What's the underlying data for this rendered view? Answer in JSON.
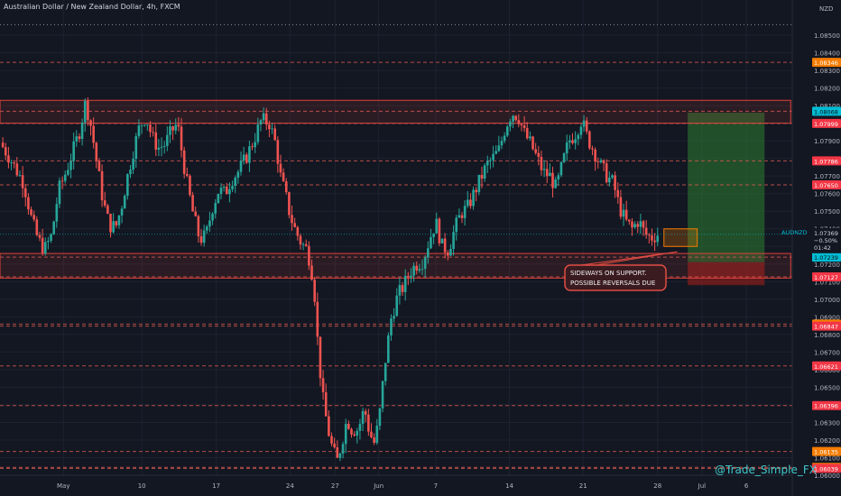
{
  "header": {
    "title": "Australian Dollar / New Zealand Dollar, 4h, FXCM"
  },
  "watermark": "@Trade_Simple_FX",
  "annotation": {
    "line1": "SIDEWAYS ON SUPPORT.",
    "line2": "POSSIBLE REVERSALS DUE"
  },
  "colors": {
    "background": "#131722",
    "up": "#26a69a",
    "down": "#ef5350",
    "level_line": "#d5564f",
    "zone_border": "#e0413a",
    "target_zone": "#2e7d32",
    "stop_zone": "#7f1d1d",
    "annotation_border": "#e04c43",
    "annotation_fill": "#3a1b20",
    "price_badge_red": "#f23645",
    "price_badge_orange": "#f57c00",
    "price_badge_cyan": "#00bcd4",
    "watermark": "#3ec8c8"
  },
  "chart_data": {
    "type": "candlestick",
    "symbol": "AUDNZD",
    "timeframe": "4h",
    "y_range": [
      1.06,
      1.087
    ],
    "y_ticks": [
      "1.08500",
      "1.08400",
      "1.08300",
      "1.08200",
      "1.08100",
      "1.08000",
      "1.07900",
      "1.07800",
      "1.07700",
      "1.07600",
      "1.07500",
      "1.07400",
      "1.07300",
      "1.07200",
      "1.07100",
      "1.07000",
      "1.06900",
      "1.06800",
      "1.06700",
      "1.06600",
      "1.06500",
      "1.06400",
      "1.06300",
      "1.06200",
      "1.06100",
      "1.06000"
    ],
    "currency_label": "NZD",
    "x_ticks": [
      {
        "label": "May",
        "x": 0.08
      },
      {
        "label": "10",
        "x": 0.179
      },
      {
        "label": "17",
        "x": 0.273
      },
      {
        "label": "24",
        "x": 0.366
      },
      {
        "label": "27",
        "x": 0.423
      },
      {
        "label": "Jun",
        "x": 0.478
      },
      {
        "label": "7",
        "x": 0.55
      },
      {
        "label": "14",
        "x": 0.643
      },
      {
        "label": "21",
        "x": 0.736
      },
      {
        "label": "28",
        "x": 0.83
      },
      {
        "label": "Jul",
        "x": 0.886
      },
      {
        "label": "6",
        "x": 0.942
      }
    ],
    "price_levels": [
      {
        "value": 1.08346,
        "label": "1.08346",
        "badge": "orange"
      },
      {
        "value": 1.08068,
        "label": "1.08068",
        "badge": "cyan"
      },
      {
        "value": 1.07999,
        "label": "1.07999",
        "badge": "red"
      },
      {
        "value": 1.07786,
        "label": "1.07786",
        "badge": "red"
      },
      {
        "value": 1.0765,
        "label": "1.07650",
        "badge": "red"
      },
      {
        "value": 1.07239,
        "label": "1.07239",
        "badge": "cyan"
      },
      {
        "value": 1.07127,
        "label": "1.07127",
        "badge": "red"
      },
      {
        "value": 1.06859,
        "label": "1.06859",
        "badge": "orange"
      },
      {
        "value": 1.06847,
        "label": "1.06847",
        "badge": "red"
      },
      {
        "value": 1.06621,
        "label": "1.06621",
        "badge": "red"
      },
      {
        "value": 1.06396,
        "label": "1.06396",
        "badge": "red"
      },
      {
        "value": 1.06135,
        "label": "1.06135",
        "badge": "orange"
      },
      {
        "value": 1.06045,
        "label": "1.06045",
        "badge": "orange"
      },
      {
        "value": 1.06039,
        "label": "1.06039",
        "badge": "red"
      }
    ],
    "current_price": {
      "symbol": "AUDNZD",
      "value": "1.07369",
      "change": "−0.50%",
      "countdown": "01:42"
    },
    "resistance_zone": [
      1.08,
      1.0813
    ],
    "support_zone": [
      1.0712,
      1.0726
    ],
    "target_zone": [
      1.0721,
      1.0806
    ],
    "stop_zone": [
      1.0708,
      1.0721
    ],
    "close_path": [
      [
        0.0,
        1.0789
      ],
      [
        0.01,
        1.0782
      ],
      [
        0.02,
        1.0774
      ],
      [
        0.03,
        1.0766
      ],
      [
        0.04,
        1.0745
      ],
      [
        0.048,
        1.0734
      ],
      [
        0.056,
        1.0728
      ],
      [
        0.065,
        1.0736
      ],
      [
        0.074,
        1.0762
      ],
      [
        0.083,
        1.0772
      ],
      [
        0.092,
        1.0784
      ],
      [
        0.1,
        1.0795
      ],
      [
        0.108,
        1.0812
      ],
      [
        0.115,
        1.0798
      ],
      [
        0.122,
        1.0778
      ],
      [
        0.13,
        1.0756
      ],
      [
        0.138,
        1.0742
      ],
      [
        0.146,
        1.0741
      ],
      [
        0.153,
        1.0752
      ],
      [
        0.16,
        1.0768
      ],
      [
        0.168,
        1.0784
      ],
      [
        0.176,
        1.0798
      ],
      [
        0.184,
        1.0804
      ],
      [
        0.192,
        1.0792
      ],
      [
        0.2,
        1.0786
      ],
      [
        0.208,
        1.0788
      ],
      [
        0.216,
        1.0795
      ],
      [
        0.224,
        1.08
      ],
      [
        0.23,
        1.0782
      ],
      [
        0.236,
        1.0766
      ],
      [
        0.244,
        1.0748
      ],
      [
        0.252,
        1.0734
      ],
      [
        0.26,
        1.0736
      ],
      [
        0.268,
        1.0752
      ],
      [
        0.276,
        1.0762
      ],
      [
        0.284,
        1.076
      ],
      [
        0.292,
        1.0768
      ],
      [
        0.3,
        1.0772
      ],
      [
        0.31,
        1.078
      ],
      [
        0.32,
        1.079
      ],
      [
        0.33,
        1.0802
      ],
      [
        0.34,
        1.08
      ],
      [
        0.348,
        1.0788
      ],
      [
        0.354,
        1.077
      ],
      [
        0.36,
        1.076
      ],
      [
        0.366,
        1.0748
      ],
      [
        0.372,
        1.074
      ],
      [
        0.38,
        1.0732
      ],
      [
        0.388,
        1.0728
      ],
      [
        0.396,
        1.071
      ],
      [
        0.402,
        1.0668
      ],
      [
        0.408,
        1.0642
      ],
      [
        0.414,
        1.0626
      ],
      [
        0.42,
        1.0614
      ],
      [
        0.426,
        1.0608
      ],
      [
        0.432,
        1.062
      ],
      [
        0.438,
        1.0632
      ],
      [
        0.444,
        1.0626
      ],
      [
        0.452,
        1.0626
      ],
      [
        0.46,
        1.0638
      ],
      [
        0.466,
        1.0625
      ],
      [
        0.472,
        1.0618
      ],
      [
        0.478,
        1.063
      ],
      [
        0.486,
        1.0664
      ],
      [
        0.494,
        1.069
      ],
      [
        0.502,
        1.0702
      ],
      [
        0.51,
        1.0708
      ],
      [
        0.518,
        1.0716
      ],
      [
        0.526,
        1.072
      ],
      [
        0.534,
        1.0722
      ],
      [
        0.542,
        1.0734
      ],
      [
        0.55,
        1.0744
      ],
      [
        0.558,
        1.073
      ],
      [
        0.566,
        1.0728
      ],
      [
        0.574,
        1.074
      ],
      [
        0.582,
        1.0749
      ],
      [
        0.59,
        1.0752
      ],
      [
        0.598,
        1.076
      ],
      [
        0.606,
        1.0768
      ],
      [
        0.614,
        1.0776
      ],
      [
        0.622,
        1.078
      ],
      [
        0.63,
        1.0785
      ],
      [
        0.638,
        1.0798
      ],
      [
        0.646,
        1.0806
      ],
      [
        0.654,
        1.0804
      ],
      [
        0.662,
        1.0794
      ],
      [
        0.67,
        1.0788
      ],
      [
        0.678,
        1.078
      ],
      [
        0.686,
        1.0772
      ],
      [
        0.694,
        1.077
      ],
      [
        0.702,
        1.0763
      ],
      [
        0.71,
        1.0777
      ],
      [
        0.718,
        1.079
      ],
      [
        0.726,
        1.0794
      ],
      [
        0.734,
        1.0802
      ],
      [
        0.742,
        1.0791
      ],
      [
        0.75,
        1.0784
      ],
      [
        0.758,
        1.0776
      ],
      [
        0.766,
        1.077
      ],
      [
        0.774,
        1.0766
      ],
      [
        0.782,
        1.0752
      ],
      [
        0.79,
        1.0744
      ],
      [
        0.798,
        1.074
      ],
      [
        0.806,
        1.0745
      ],
      [
        0.814,
        1.0737
      ],
      [
        0.822,
        1.0735
      ],
      [
        0.83,
        1.0737
      ]
    ]
  }
}
